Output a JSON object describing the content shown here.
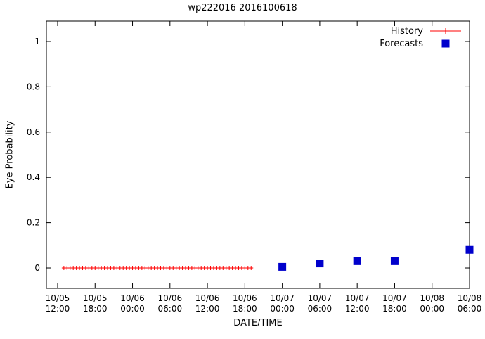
{
  "chart_data": {
    "type": "scatter",
    "title": "wp222016 2016100618",
    "xlabel": "DATE/TIME",
    "ylabel": "Eye Probability",
    "x_unit": "hours since 10/05 12:00",
    "xlim": [
      -1.8,
      66
    ],
    "ylim": [
      -0.09,
      1.09
    ],
    "grid": false,
    "y_ticks": [
      "0",
      "0.2",
      "0.4",
      "0.6",
      "0.8",
      "1"
    ],
    "y_tick_values": [
      0,
      0.2,
      0.4,
      0.6,
      0.8,
      1
    ],
    "x_ticks": [
      {
        "value": 0,
        "date": "10/05",
        "time": "12:00"
      },
      {
        "value": 6,
        "date": "10/05",
        "time": "18:00"
      },
      {
        "value": 12,
        "date": "10/06",
        "time": "00:00"
      },
      {
        "value": 18,
        "date": "10/06",
        "time": "06:00"
      },
      {
        "value": 24,
        "date": "10/06",
        "time": "12:00"
      },
      {
        "value": 30,
        "date": "10/06",
        "time": "18:00"
      },
      {
        "value": 36,
        "date": "10/07",
        "time": "00:00"
      },
      {
        "value": 42,
        "date": "10/07",
        "time": "06:00"
      },
      {
        "value": 48,
        "date": "10/07",
        "time": "12:00"
      },
      {
        "value": 54,
        "date": "10/07",
        "time": "18:00"
      },
      {
        "value": 60,
        "date": "10/08",
        "time": "00:00"
      },
      {
        "value": 66,
        "date": "10/08",
        "time": "06:00"
      }
    ],
    "legend_position": "top-right",
    "series": [
      {
        "name": "History",
        "style": "linespoints",
        "marker": "plus",
        "color": "#ff0000",
        "points": [
          [
            1,
            0
          ],
          [
            1.5,
            0
          ],
          [
            2,
            0
          ],
          [
            2.5,
            0
          ],
          [
            3,
            0
          ],
          [
            3.5,
            0
          ],
          [
            4,
            0
          ],
          [
            4.5,
            0
          ],
          [
            5,
            0
          ],
          [
            5.5,
            0
          ],
          [
            6,
            0
          ],
          [
            6.5,
            0
          ],
          [
            7,
            0
          ],
          [
            7.5,
            0
          ],
          [
            8,
            0
          ],
          [
            8.5,
            0
          ],
          [
            9,
            0
          ],
          [
            9.5,
            0
          ],
          [
            10,
            0
          ],
          [
            10.5,
            0
          ],
          [
            11,
            0
          ],
          [
            11.5,
            0
          ],
          [
            12,
            0
          ],
          [
            12.5,
            0
          ],
          [
            13,
            0
          ],
          [
            13.5,
            0
          ],
          [
            14,
            0
          ],
          [
            14.5,
            0
          ],
          [
            15,
            0
          ],
          [
            15.5,
            0
          ],
          [
            16,
            0
          ],
          [
            16.5,
            0
          ],
          [
            17,
            0
          ],
          [
            17.5,
            0
          ],
          [
            18,
            0
          ],
          [
            18.5,
            0
          ],
          [
            19,
            0
          ],
          [
            19.5,
            0
          ],
          [
            20,
            0
          ],
          [
            20.5,
            0
          ],
          [
            21,
            0
          ],
          [
            21.5,
            0
          ],
          [
            22,
            0
          ],
          [
            22.5,
            0
          ],
          [
            23,
            0
          ],
          [
            23.5,
            0
          ],
          [
            24,
            0
          ],
          [
            24.5,
            0
          ],
          [
            25,
            0
          ],
          [
            25.5,
            0
          ],
          [
            26,
            0
          ],
          [
            26.5,
            0
          ],
          [
            27,
            0
          ],
          [
            27.5,
            0
          ],
          [
            28,
            0
          ],
          [
            28.5,
            0
          ],
          [
            29,
            0
          ],
          [
            29.5,
            0
          ],
          [
            30,
            0
          ],
          [
            30.5,
            0
          ],
          [
            31,
            0
          ]
        ]
      },
      {
        "name": "Forecasts",
        "style": "points",
        "marker": "filled-square",
        "color": "#0000cc",
        "points": [
          [
            36,
            0.005
          ],
          [
            42,
            0.02
          ],
          [
            48,
            0.03
          ],
          [
            54,
            0.03
          ],
          [
            66,
            0.08
          ]
        ]
      }
    ]
  }
}
